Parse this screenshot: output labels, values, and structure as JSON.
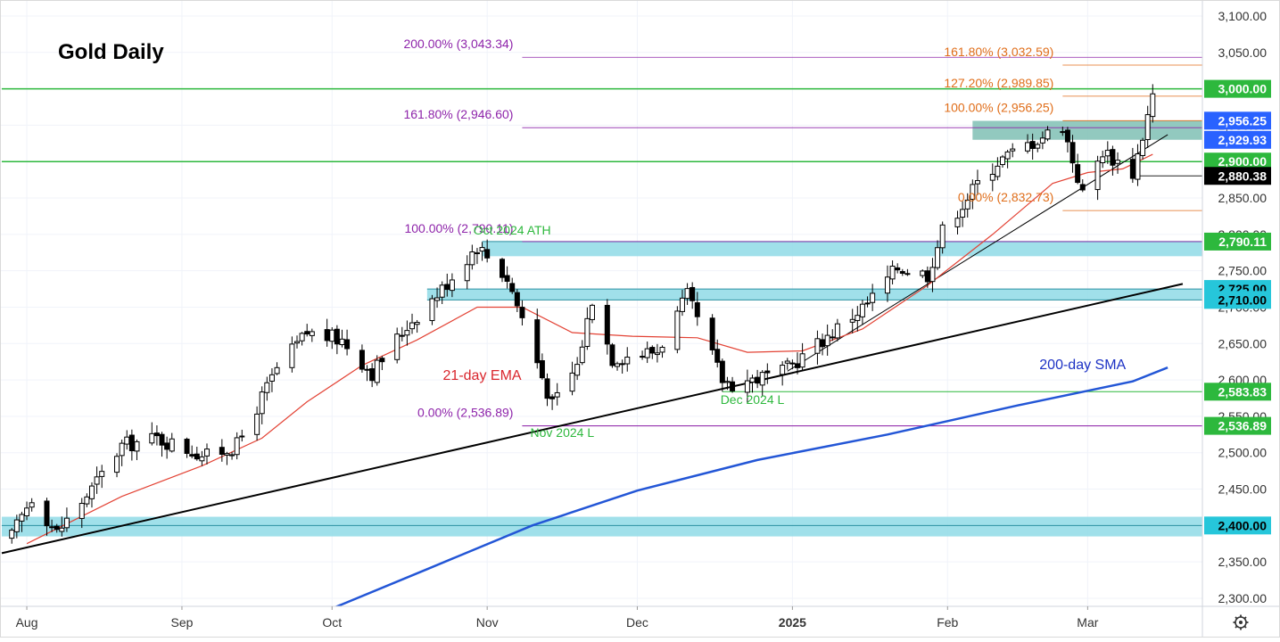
{
  "chart_data": {
    "type": "candlestick",
    "title": "Gold Daily",
    "ylim": [
      2285,
      3115
    ],
    "y_ticks": [
      "2,300.00",
      "2,350.00",
      "2,400.00",
      "2,450.00",
      "2,500.00",
      "2,550.00",
      "2,600.00",
      "2,650.00",
      "2,700.00",
      "2,750.00",
      "2,800.00",
      "2,850.00",
      "2,900.00",
      "2,950.00",
      "3,000.00",
      "3,050.00",
      "3,100.00"
    ],
    "x_ticks": [
      {
        "label": "Aug",
        "date": "2024-08-01",
        "bold": false
      },
      {
        "label": "Sep",
        "date": "2024-09-01",
        "bold": false
      },
      {
        "label": "Oct",
        "date": "2024-10-01",
        "bold": false
      },
      {
        "label": "Nov",
        "date": "2024-11-01",
        "bold": false
      },
      {
        "label": "Dec",
        "date": "2024-12-01",
        "bold": false
      },
      {
        "label": "2025",
        "date": "2025-01-01",
        "bold": true
      },
      {
        "label": "Feb",
        "date": "2025-02-01",
        "bold": false
      },
      {
        "label": "Mar",
        "date": "2025-03-01",
        "bold": false
      }
    ],
    "x_range": [
      "2024-07-27",
      "2025-03-23"
    ],
    "anchors": [
      {
        "date": "2024-07-29",
        "price": 2385
      },
      {
        "date": "2024-08-02",
        "price": 2440
      },
      {
        "date": "2024-08-07",
        "price": 2390
      },
      {
        "date": "2024-08-14",
        "price": 2450
      },
      {
        "date": "2024-08-20",
        "price": 2510
      },
      {
        "date": "2024-08-27",
        "price": 2520
      },
      {
        "date": "2024-09-06",
        "price": 2495
      },
      {
        "date": "2024-09-12",
        "price": 2510
      },
      {
        "date": "2024-09-20",
        "price": 2615
      },
      {
        "date": "2024-09-26",
        "price": 2665
      },
      {
        "date": "2024-10-03",
        "price": 2655
      },
      {
        "date": "2024-10-09",
        "price": 2610
      },
      {
        "date": "2024-10-16",
        "price": 2675
      },
      {
        "date": "2024-10-23",
        "price": 2725
      },
      {
        "date": "2024-10-30",
        "price": 2785
      },
      {
        "date": "2024-11-05",
        "price": 2740
      },
      {
        "date": "2024-11-08",
        "price": 2685
      },
      {
        "date": "2024-11-14",
        "price": 2565
      },
      {
        "date": "2024-11-19",
        "price": 2620
      },
      {
        "date": "2024-11-22",
        "price": 2712
      },
      {
        "date": "2024-11-26",
        "price": 2630
      },
      {
        "date": "2024-12-05",
        "price": 2640
      },
      {
        "date": "2024-12-11",
        "price": 2715
      },
      {
        "date": "2024-12-18",
        "price": 2600
      },
      {
        "date": "2024-12-20",
        "price": 2595
      },
      {
        "date": "2024-12-30",
        "price": 2610
      },
      {
        "date": "2025-01-07",
        "price": 2655
      },
      {
        "date": "2025-01-16",
        "price": 2705
      },
      {
        "date": "2025-01-22",
        "price": 2755
      },
      {
        "date": "2025-01-28",
        "price": 2745
      },
      {
        "date": "2025-01-31",
        "price": 2805
      },
      {
        "date": "2025-02-07",
        "price": 2870
      },
      {
        "date": "2025-02-11",
        "price": 2900
      },
      {
        "date": "2025-02-20",
        "price": 2935
      },
      {
        "date": "2025-02-24",
        "price": 2950
      },
      {
        "date": "2025-02-28",
        "price": 2855
      },
      {
        "date": "2025-03-04",
        "price": 2915
      },
      {
        "date": "2025-03-10",
        "price": 2885
      },
      {
        "date": "2025-03-12",
        "price": 2935
      },
      {
        "date": "2025-03-14",
        "price": 2990
      }
    ],
    "indicators": [
      {
        "name": "21-day EMA",
        "color": "#e34234",
        "label_color": "#d9262d",
        "points": [
          {
            "date": "2024-08-01",
            "price": 2375
          },
          {
            "date": "2024-08-20",
            "price": 2440
          },
          {
            "date": "2024-09-05",
            "price": 2482
          },
          {
            "date": "2024-09-17",
            "price": 2520
          },
          {
            "date": "2024-09-26",
            "price": 2570
          },
          {
            "date": "2024-10-07",
            "price": 2620
          },
          {
            "date": "2024-10-18",
            "price": 2655
          },
          {
            "date": "2024-10-30",
            "price": 2700
          },
          {
            "date": "2024-11-08",
            "price": 2700
          },
          {
            "date": "2024-11-18",
            "price": 2665
          },
          {
            "date": "2024-11-30",
            "price": 2660
          },
          {
            "date": "2024-12-13",
            "price": 2658
          },
          {
            "date": "2024-12-23",
            "price": 2638
          },
          {
            "date": "2025-01-03",
            "price": 2640
          },
          {
            "date": "2025-01-15",
            "price": 2670
          },
          {
            "date": "2025-01-28",
            "price": 2730
          },
          {
            "date": "2025-02-10",
            "price": 2800
          },
          {
            "date": "2025-02-22",
            "price": 2870
          },
          {
            "date": "2025-03-01",
            "price": 2885
          },
          {
            "date": "2025-03-08",
            "price": 2890
          },
          {
            "date": "2025-03-14",
            "price": 2910
          }
        ]
      },
      {
        "name": "200-day SMA",
        "color": "#2356d6",
        "label_color": "#1c31c4",
        "points": [
          {
            "date": "2024-10-01",
            "price": 2286
          },
          {
            "date": "2024-10-20",
            "price": 2340
          },
          {
            "date": "2024-11-10",
            "price": 2400
          },
          {
            "date": "2024-12-01",
            "price": 2448
          },
          {
            "date": "2024-12-25",
            "price": 2490
          },
          {
            "date": "2025-01-20",
            "price": 2525
          },
          {
            "date": "2025-02-15",
            "price": 2565
          },
          {
            "date": "2025-03-10",
            "price": 2598
          },
          {
            "date": "2025-03-17",
            "price": 2617
          }
        ]
      }
    ],
    "trendlines": [
      {
        "name": "long-term-support",
        "color": "#000000",
        "from": {
          "date": "2024-07-27",
          "price": 2362
        },
        "to": {
          "date": "2025-03-20",
          "price": 2732
        }
      },
      {
        "name": "short-term-support",
        "color": "#000000",
        "from": {
          "date": "2024-12-31",
          "price": 2612
        },
        "to": {
          "date": "2025-03-17",
          "price": 2937
        }
      }
    ],
    "zones": [
      {
        "name": "zone-2400",
        "from": 2385,
        "to": 2412,
        "start": "2024-07-27",
        "color": "#8fdbe6"
      },
      {
        "name": "zone-2710-2725",
        "from": 2710,
        "to": 2725,
        "start": "2024-10-20",
        "color": "#8fdbe6"
      },
      {
        "name": "zone-2790",
        "from": 2770,
        "to": 2790,
        "start": "2024-10-31",
        "color": "#8fdbe6"
      },
      {
        "name": "zone-2930-2956",
        "from": 2930,
        "to": 2956,
        "start": "2025-02-06",
        "color": "#7fbfb4"
      }
    ],
    "horizontal_lines": [
      {
        "name": "line-3000",
        "price": 3000,
        "start": "2024-07-27",
        "color": "#2db83d",
        "width": 1.5
      },
      {
        "name": "line-2900",
        "price": 2900,
        "start": "2024-07-27",
        "color": "#2db83d",
        "width": 1.5
      },
      {
        "name": "line-2400",
        "price": 2400,
        "start": "2024-07-27",
        "color": "#2a8fa0",
        "width": 1
      },
      {
        "name": "line-2583",
        "price": 2583.83,
        "start": "2024-12-18",
        "color": "#2db83d",
        "width": 1
      },
      {
        "name": "line-2537",
        "price": 2536.89,
        "start": "2024-11-08",
        "color": "#8e24aa",
        "width": 1
      },
      {
        "name": "line-2880",
        "price": 2880.38,
        "start": "2025-03-11",
        "color": "#222222",
        "width": 1
      },
      {
        "name": "line-2790",
        "price": 2790.11,
        "start": "2024-10-31",
        "color": "#2a8fa0",
        "width": 1
      },
      {
        "name": "line-2725",
        "price": 2725,
        "start": "2024-10-20",
        "color": "#2a8fa0",
        "width": 1
      },
      {
        "name": "line-2710",
        "price": 2710,
        "start": "2024-10-20",
        "color": "#2a8fa0",
        "width": 1
      }
    ],
    "fib_lines": [
      {
        "name": "fib-200",
        "price": 3043.34,
        "start": "2024-11-08",
        "color": "#8e24aa",
        "label": "200.00% (3,043.34)",
        "label_color": "#8e24aa"
      },
      {
        "name": "fib-161-purple",
        "price": 2946.6,
        "start": "2024-11-08",
        "color": "#8e24aa",
        "label": "161.80% (2,946.60)",
        "label_color": "#8e24aa"
      },
      {
        "name": "fib-100-purple",
        "price": 2790.11,
        "start": "2024-11-08",
        "color": "#8e24aa",
        "label": "100.00% (2,790.11)",
        "label_color": "#8e24aa"
      },
      {
        "name": "fib-0-purple",
        "price": 2536.89,
        "start": "2024-11-08",
        "color": "#8e24aa",
        "label": "0.00% (2,536.89)",
        "label_color": "#8e24aa"
      },
      {
        "name": "fib-161-orange",
        "price": 3032.59,
        "start": "2025-02-24",
        "color": "#e06e1a",
        "label": "161.80% (3,032.59)",
        "label_color": "#e06e1a"
      },
      {
        "name": "fib-127-orange",
        "price": 2989.85,
        "start": "2025-02-24",
        "color": "#e06e1a",
        "label": "127.20% (2,989.85)",
        "label_color": "#e06e1a"
      },
      {
        "name": "fib-100-orange",
        "price": 2956.25,
        "start": "2025-02-24",
        "color": "#e06e1a",
        "label": "100.00% (2,956.25)",
        "label_color": "#e06e1a"
      },
      {
        "name": "fib-0-orange",
        "price": 2832.73,
        "start": "2025-02-24",
        "color": "#e06e1a",
        "label": "0.00% (2,832.73)",
        "label_color": "#e06e1a"
      }
    ],
    "annotations": [
      {
        "text": "Oct 2024 ATH",
        "date": "2024-11-06",
        "price": 2800,
        "color": "#2db83d"
      },
      {
        "text": "Nov 2024 L",
        "date": "2024-11-16",
        "price": 2522,
        "color": "#2db83d"
      },
      {
        "text": "Dec 2024 L",
        "date": "2024-12-24",
        "price": 2567,
        "color": "#2db83d"
      },
      {
        "text": "21-day EMA",
        "date": "2024-10-31",
        "price": 2600,
        "color": "#d9262d"
      },
      {
        "text": "200-day SMA",
        "date": "2025-02-28",
        "price": 2615,
        "color": "#1c31c4"
      }
    ],
    "price_labels": [
      {
        "text": "3,000.00",
        "price": 3000,
        "bg": "#2db83d",
        "fg": "#ffffff"
      },
      {
        "text": "2,956.25",
        "price": 2956.25,
        "bg": "#2962ff",
        "fg": "#ffffff"
      },
      {
        "text": "2,929.93",
        "price": 2929.93,
        "bg": "#2962ff",
        "fg": "#ffffff"
      },
      {
        "text": "2,900.00",
        "price": 2900,
        "bg": "#2db83d",
        "fg": "#ffffff"
      },
      {
        "text": "2,880.38",
        "price": 2880.38,
        "bg": "#000000",
        "fg": "#ffffff"
      },
      {
        "text": "2,790.11",
        "price": 2790.11,
        "bg": "#2db83d",
        "fg": "#ffffff"
      },
      {
        "text": "2,725.00",
        "price": 2725,
        "bg": "#26c6da",
        "fg": "#000000"
      },
      {
        "text": "2,710.00",
        "price": 2710,
        "bg": "#26c6da",
        "fg": "#000000"
      },
      {
        "text": "2,583.83",
        "price": 2583.83,
        "bg": "#2db83d",
        "fg": "#ffffff"
      },
      {
        "text": "2,536.89",
        "price": 2536.89,
        "bg": "#2db83d",
        "fg": "#ffffff"
      },
      {
        "text": "2,400.00",
        "price": 2400,
        "bg": "#26c6da",
        "fg": "#000000"
      }
    ],
    "grid": true,
    "candle_colors": {
      "up": "#ffffff",
      "down": "#000000",
      "wick": "#000000"
    }
  },
  "settings_icon": "gear-icon"
}
